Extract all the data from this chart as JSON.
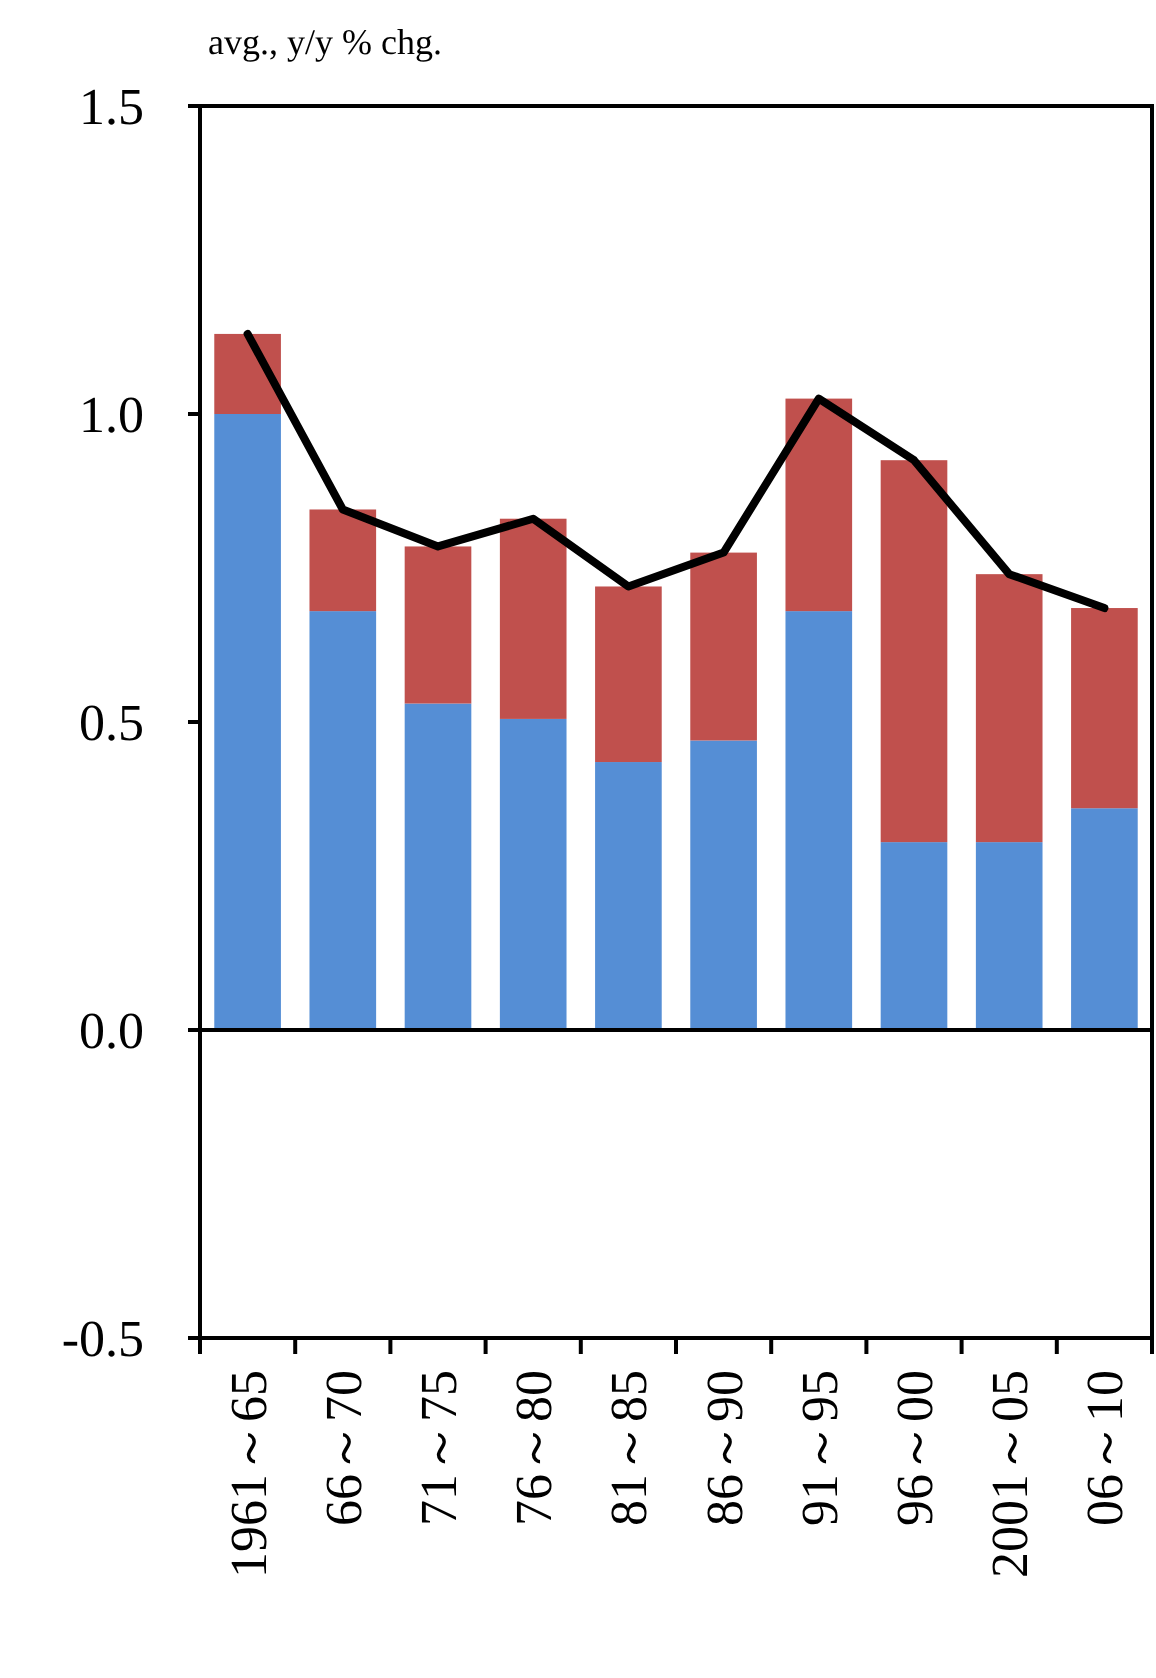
{
  "chart_data": {
    "type": "bar",
    "stacked": true,
    "ylabel": "avg., y/y % chg.",
    "categories": [
      "1961～65",
      "66～70",
      "71～75",
      "76～80",
      "81～85",
      "86～90",
      "91～95",
      "96～00",
      "2001～05",
      "06～10"
    ],
    "series": [
      {
        "color": "#558ed5",
        "values": [
          1.0,
          0.68,
          0.53,
          0.505,
          0.435,
          0.47,
          0.68,
          0.305,
          0.305,
          0.36
        ]
      },
      {
        "color": "#c0504d",
        "values": [
          0.13,
          0.165,
          0.255,
          0.325,
          0.285,
          0.305,
          0.345,
          0.62,
          0.435,
          0.325
        ]
      },
      {
        "type": "line",
        "color": "#000000",
        "values": [
          1.13,
          0.845,
          0.785,
          0.83,
          0.72,
          0.775,
          1.025,
          0.925,
          0.74,
          0.685
        ]
      }
    ],
    "ylim": [
      -0.5,
      1.5
    ],
    "yticks": [
      {
        "value": -0.5,
        "label": "-0.5"
      },
      {
        "value": 0,
        "label": "0.0"
      },
      {
        "value": 0.5,
        "label": "0.5"
      },
      {
        "value": 1,
        "label": "1.0"
      },
      {
        "value": 1.5,
        "label": "1.5"
      }
    ]
  }
}
